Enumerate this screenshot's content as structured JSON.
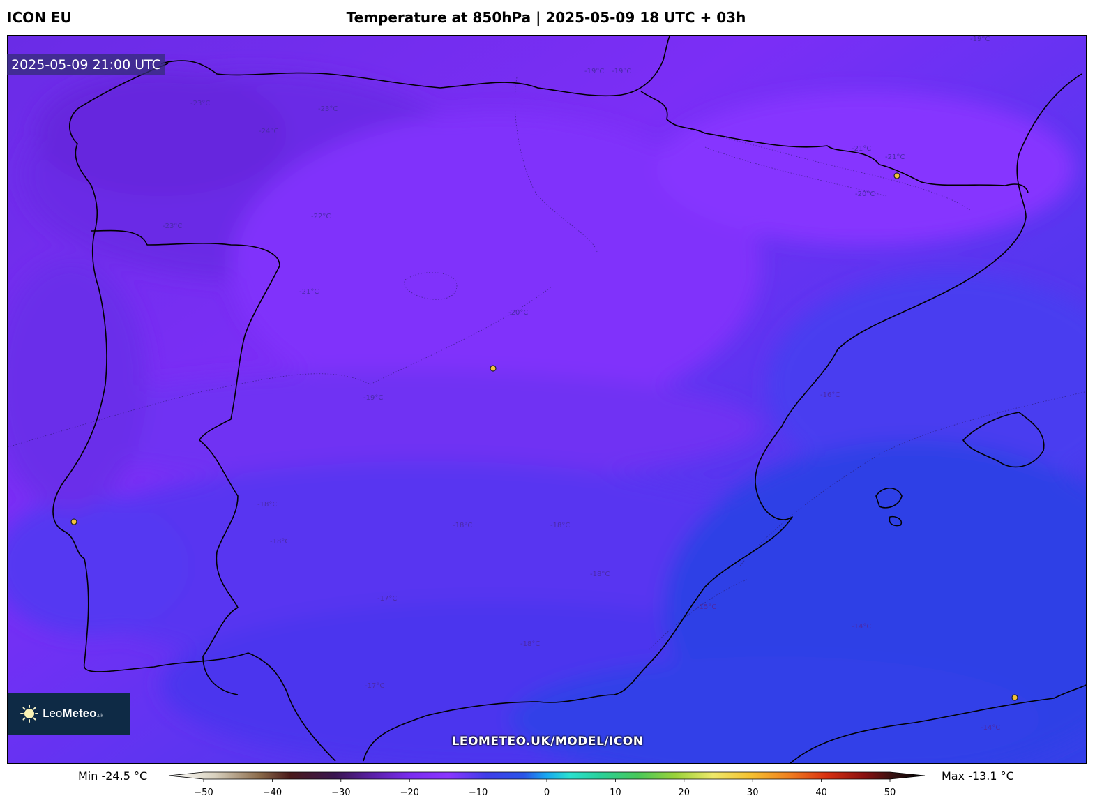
{
  "header": {
    "model": "ICON EU",
    "title": "Temperature at 850hPa | 2025-05-09 18 UTC + 03h"
  },
  "map": {
    "valid_time": "2025-05-09 21:00 UTC",
    "contour_labels": [
      "-23°C",
      "-23°C",
      "-24°C",
      "-22°C",
      "-23°C",
      "-21°C",
      "-19°C",
      "-19°C",
      "-19°C",
      "-21°C",
      "-21°C",
      "-20°C",
      "-20°C",
      "-19°C",
      "-18°C",
      "-18°C",
      "-18°C",
      "-18°C",
      "-18°C",
      "-17°C",
      "-17°C",
      "-16°C",
      "-15°C",
      "-14°C",
      "-14°C",
      "-18°C"
    ],
    "colors": {
      "cold_violet": "#6b2be8",
      "mid_violet": "#7a2cf5",
      "light_violet": "#8a33ff",
      "blue_violet": "#5533f2",
      "blue": "#4433ee",
      "sea_blue": "#2f3fe6",
      "coastline": "#000000",
      "city_marker": "#f2c23a"
    }
  },
  "logo": {
    "brand_light": "Leo",
    "brand_bold": "Meteo",
    "suffix": ".uk"
  },
  "url": "LEOMETEO.UK/MODEL/ICON",
  "colorbar": {
    "min_label": "Min -24.5 °C",
    "max_label": "Max -13.1 °C",
    "ticks": [
      "−50",
      "−40",
      "−30",
      "−20",
      "−10",
      "0",
      "10",
      "20",
      "30",
      "40",
      "50"
    ],
    "range": [
      -50,
      50
    ]
  }
}
